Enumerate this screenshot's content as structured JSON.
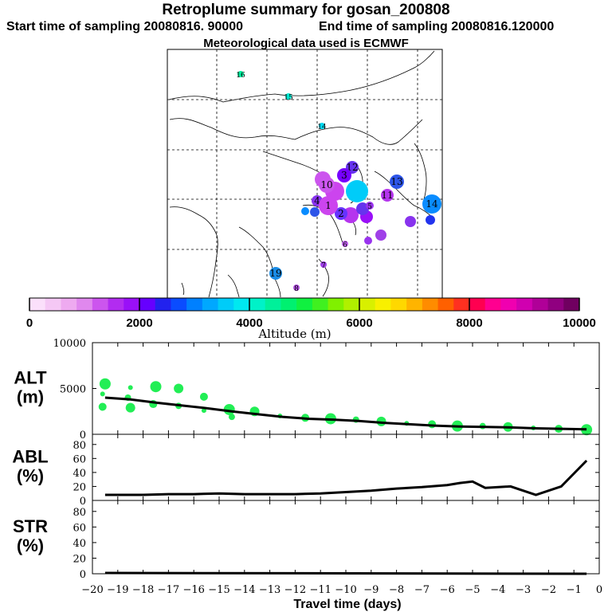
{
  "header": {
    "title": "Retroplume summary for gosan_200808",
    "start_label": "Start time of sampling 20080816. 90000",
    "end_label": "End time of sampling 20080816.120000",
    "met_label": "Meteorological data used is ECMWF"
  },
  "colorbar": {
    "ticks": [
      "0",
      "2000",
      "4000",
      "6000",
      "8000",
      "10000"
    ],
    "label": "Altitude (m)",
    "colors": [
      "#fbe0fb",
      "#f5c8f5",
      "#eeaaf0",
      "#e088ee",
      "#cc55ee",
      "#b22cf0",
      "#9a10f8",
      "#6600ff",
      "#2222ee",
      "#0a4cff",
      "#0080ff",
      "#00a8ff",
      "#00ccf8",
      "#00e8f0",
      "#00f2c8",
      "#00f09a",
      "#00f070",
      "#10f040",
      "#40f020",
      "#80f000",
      "#b0f000",
      "#d8f000",
      "#f8f000",
      "#ffd800",
      "#ffb400",
      "#ff8c00",
      "#ff6000",
      "#ff3020",
      "#ff0050",
      "#ff0090",
      "#f000b0",
      "#d000b0",
      "#b00098",
      "#900080",
      "#700060"
    ]
  },
  "map": {
    "clusters": [
      {
        "label": "16",
        "color": "#00f0a0"
      },
      {
        "label": "15",
        "color": "#00e8d0"
      },
      {
        "label": "14",
        "color": "#00d8f0"
      },
      {
        "label": "14",
        "color": "#0a8cff"
      },
      {
        "label": "13",
        "color": "#2d55e8"
      },
      {
        "label": "12",
        "color": "#6633ee"
      },
      {
        "label": "11",
        "color": "#b535ee"
      },
      {
        "label": "10",
        "color": "#cc55ee"
      },
      {
        "label": "19",
        "color": "#1a8ce6"
      },
      {
        "label": "8",
        "color": "#b050e0"
      },
      {
        "label": "7",
        "color": "#a040e8"
      },
      {
        "label": "6",
        "color": "#c060ee"
      },
      {
        "label": "5",
        "color": "#9933ee"
      },
      {
        "label": "4",
        "color": "#8833ee"
      },
      {
        "label": "3",
        "color": "#7700ff"
      },
      {
        "label": "2",
        "color": "#6633ff"
      },
      {
        "label": "1",
        "color": "#cc44ee"
      }
    ]
  },
  "chart_data": [
    {
      "type": "line",
      "panel": "ALT",
      "ylabel": "ALT\n(m)",
      "ylabel_lines": [
        "ALT",
        "(m)"
      ],
      "ylim": [
        0,
        10000
      ],
      "yticks": [
        "0",
        "5000",
        "10000"
      ],
      "x": [
        -19.5,
        -18.5,
        -17.5,
        -16.5,
        -15.5,
        -14.5,
        -13.5,
        -12.5,
        -11.5,
        -10.5,
        -9.5,
        -8.5,
        -7.5,
        -6.5,
        -5.5,
        -4.5,
        -3.5,
        -2.5,
        -1.5,
        -0.5
      ],
      "mean": [
        4000,
        3800,
        3450,
        3150,
        2850,
        2500,
        2200,
        1900,
        1700,
        1600,
        1450,
        1250,
        1100,
        950,
        850,
        800,
        750,
        650,
        600,
        550
      ],
      "cluster_points": [
        {
          "day": -19.6,
          "alt": 4400
        },
        {
          "day": -19.6,
          "alt": 3000
        },
        {
          "day": -19.5,
          "alt": 5500
        },
        {
          "day": -18.6,
          "alt": 4000
        },
        {
          "day": -18.5,
          "alt": 2900
        },
        {
          "day": -18.5,
          "alt": 5100
        },
        {
          "day": -17.6,
          "alt": 3300
        },
        {
          "day": -17.5,
          "alt": 5200
        },
        {
          "day": -16.6,
          "alt": 3100
        },
        {
          "day": -16.6,
          "alt": 5000
        },
        {
          "day": -15.6,
          "alt": 2600
        },
        {
          "day": -15.6,
          "alt": 4100
        },
        {
          "day": -14.6,
          "alt": 2700
        },
        {
          "day": -14.5,
          "alt": 1900
        },
        {
          "day": -13.6,
          "alt": 2500
        },
        {
          "day": -12.6,
          "alt": 2000
        },
        {
          "day": -11.6,
          "alt": 1800
        },
        {
          "day": -10.6,
          "alt": 1700
        },
        {
          "day": -9.6,
          "alt": 1600
        },
        {
          "day": -8.6,
          "alt": 1400
        },
        {
          "day": -7.6,
          "alt": 1200
        },
        {
          "day": -6.6,
          "alt": 1100
        },
        {
          "day": -5.6,
          "alt": 900
        },
        {
          "day": -4.6,
          "alt": 900
        },
        {
          "day": -3.6,
          "alt": 800
        },
        {
          "day": -2.6,
          "alt": 700
        },
        {
          "day": -1.6,
          "alt": 600
        },
        {
          "day": -0.5,
          "alt": 500
        }
      ],
      "point_color": "#22ee55"
    },
    {
      "type": "line",
      "panel": "ABL",
      "ylabel_lines": [
        "ABL",
        "(%)"
      ],
      "ylim": [
        0,
        90
      ],
      "yticks": [
        "0",
        "20",
        "40",
        "60",
        "80"
      ],
      "x": [
        -19.5,
        -18,
        -17,
        -16,
        -15,
        -14,
        -13,
        -12,
        -11,
        -10,
        -9,
        -8,
        -7,
        -6,
        -5.5,
        -5,
        -4.5,
        -3.5,
        -2.5,
        -1.5,
        -0.5
      ],
      "values": [
        8,
        8,
        9,
        9,
        10,
        9,
        9,
        9,
        10,
        12,
        14,
        17,
        19,
        22,
        25,
        27,
        18,
        20,
        8,
        20,
        57
      ]
    },
    {
      "type": "line",
      "panel": "STR",
      "ylabel_lines": [
        "STR",
        "(%)"
      ],
      "ylim": [
        0,
        90
      ],
      "yticks": [
        "0",
        "20",
        "40",
        "60",
        "80"
      ],
      "x": [
        -19.5,
        -0.5
      ],
      "values": [
        1,
        0
      ],
      "xlabel": "Travel time (days)",
      "xticks": [
        "−20",
        "−19",
        "−18",
        "−17",
        "−16",
        "−15",
        "−14",
        "−13",
        "−12",
        "−11",
        "−10",
        "−9",
        "−8",
        "−7",
        "−6",
        "−5",
        "−4",
        "−3",
        "−2",
        "−1",
        "0"
      ]
    }
  ]
}
